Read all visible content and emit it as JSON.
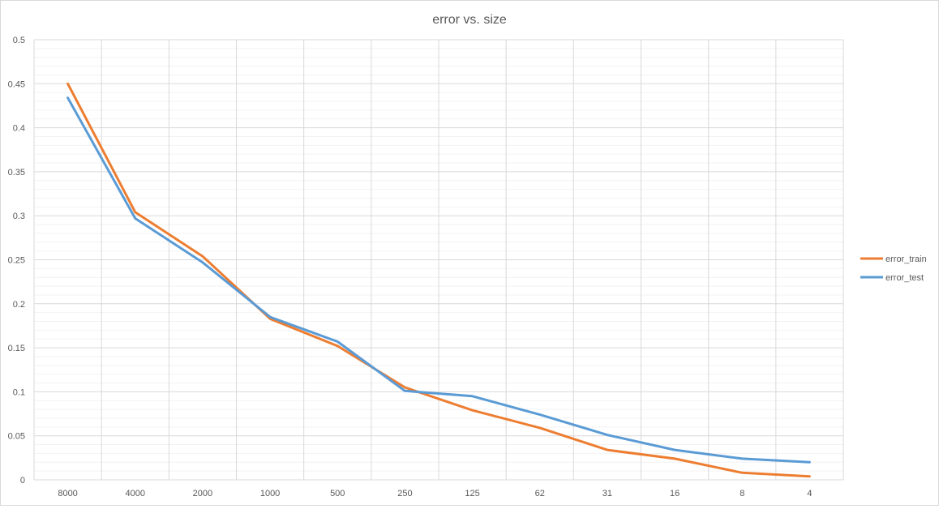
{
  "chart_data": {
    "type": "line",
    "title": "error vs. size",
    "xlabel": "",
    "ylabel": "",
    "categories": [
      "8000",
      "4000",
      "2000",
      "1000",
      "500",
      "250",
      "125",
      "62",
      "31",
      "16",
      "8",
      "4"
    ],
    "ylim": [
      0,
      0.5
    ],
    "yticks": [
      0,
      0.05,
      0.1,
      0.15,
      0.2,
      0.25,
      0.3,
      0.35,
      0.4,
      0.45,
      0.5
    ],
    "ytick_labels": [
      "0",
      "0.05",
      "0.1",
      "0.15",
      "0.2",
      "0.25",
      "0.3",
      "0.35",
      "0.4",
      "0.45",
      "0.5"
    ],
    "grid": true,
    "legend_position": "right",
    "series": [
      {
        "name": "error_train",
        "color": "#ED7D31",
        "values": [
          0.45,
          0.304,
          0.254,
          0.183,
          0.152,
          0.105,
          0.079,
          0.059,
          0.034,
          0.024,
          0.008,
          0.004
        ]
      },
      {
        "name": "error_test",
        "color": "#5B9BD5",
        "values": [
          0.434,
          0.297,
          0.247,
          0.185,
          0.157,
          0.101,
          0.095,
          0.074,
          0.051,
          0.034,
          0.024,
          0.02
        ]
      }
    ]
  }
}
